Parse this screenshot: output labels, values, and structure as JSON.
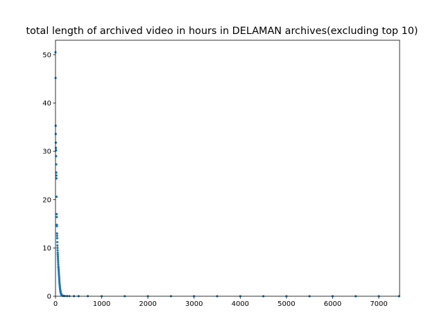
{
  "chart_data": {
    "type": "scatter",
    "title": "total length of archived video in hours in DELAMAN archives(excluding top 10)",
    "xlabel": "",
    "ylabel": "",
    "xlim": [
      0,
      7450
    ],
    "ylim": [
      0,
      53
    ],
    "grid": false,
    "series_color": "#1f77b4",
    "x_ticks": [
      0,
      1000,
      2000,
      3000,
      4000,
      5000,
      6000,
      7000
    ],
    "y_ticks": [
      0,
      10,
      20,
      30,
      40,
      50
    ],
    "x_tick_labels": [
      "0",
      "1000",
      "2000",
      "3000",
      "4000",
      "5000",
      "6000",
      "7000"
    ],
    "y_tick_labels": [
      "0",
      "10",
      "20",
      "30",
      "40",
      "50"
    ],
    "points": [
      [
        0,
        50.5
      ],
      [
        2,
        45.2
      ],
      [
        4,
        35.3
      ],
      [
        6,
        33.6
      ],
      [
        8,
        31.8
      ],
      [
        10,
        30.7
      ],
      [
        12,
        30.2
      ],
      [
        14,
        29.0
      ],
      [
        16,
        27.3
      ],
      [
        18,
        25.6
      ],
      [
        20,
        25.0
      ],
      [
        22,
        24.4
      ],
      [
        24,
        20.6
      ],
      [
        26,
        17.0
      ],
      [
        28,
        16.4
      ],
      [
        30,
        14.8
      ],
      [
        32,
        14.5
      ],
      [
        34,
        13.0
      ],
      [
        36,
        12.5
      ],
      [
        38,
        12.0
      ],
      [
        40,
        11.2
      ],
      [
        42,
        10.5
      ],
      [
        44,
        10.0
      ],
      [
        46,
        9.5
      ],
      [
        48,
        9.0
      ],
      [
        50,
        8.6
      ],
      [
        52,
        8.2
      ],
      [
        54,
        7.8
      ],
      [
        56,
        7.4
      ],
      [
        58,
        7.0
      ],
      [
        60,
        6.6
      ],
      [
        62,
        6.2
      ],
      [
        64,
        6.0
      ],
      [
        66,
        5.8
      ],
      [
        68,
        5.5
      ],
      [
        70,
        5.2
      ],
      [
        72,
        4.9
      ],
      [
        74,
        4.6
      ],
      [
        76,
        4.3
      ],
      [
        78,
        4.0
      ],
      [
        80,
        3.7
      ],
      [
        82,
        3.4
      ],
      [
        84,
        3.1
      ],
      [
        86,
        2.8
      ],
      [
        88,
        2.6
      ],
      [
        90,
        2.4
      ],
      [
        92,
        2.2
      ],
      [
        94,
        2.0
      ],
      [
        96,
        1.8
      ],
      [
        98,
        1.6
      ],
      [
        100,
        1.5
      ],
      [
        102,
        1.3
      ],
      [
        104,
        1.2
      ],
      [
        106,
        1.1
      ],
      [
        108,
        1.0
      ],
      [
        110,
        0.9
      ],
      [
        112,
        0.8
      ],
      [
        114,
        0.7
      ],
      [
        116,
        0.6
      ],
      [
        118,
        0.5
      ],
      [
        120,
        0.45
      ],
      [
        124,
        0.4
      ],
      [
        128,
        0.35
      ],
      [
        132,
        0.3
      ],
      [
        136,
        0.25
      ],
      [
        140,
        0.2
      ],
      [
        145,
        0.15
      ],
      [
        150,
        0.12
      ],
      [
        160,
        0.1
      ],
      [
        170,
        0.08
      ],
      [
        180,
        0.06
      ],
      [
        200,
        0.05
      ],
      [
        250,
        0.04
      ],
      [
        300,
        0.03
      ],
      [
        400,
        0.02
      ],
      [
        500,
        0.02
      ],
      [
        700,
        0.015
      ],
      [
        1000,
        0.01
      ],
      [
        1500,
        0.01
      ],
      [
        2000,
        0.01
      ],
      [
        2500,
        0.01
      ],
      [
        3000,
        0.005
      ],
      [
        3500,
        0.005
      ],
      [
        4000,
        0.005
      ],
      [
        4500,
        0.005
      ],
      [
        5000,
        0.004
      ],
      [
        5500,
        0.004
      ],
      [
        6000,
        0.003
      ],
      [
        6500,
        0.003
      ],
      [
        7000,
        0.002
      ],
      [
        7440,
        0.002
      ]
    ]
  }
}
